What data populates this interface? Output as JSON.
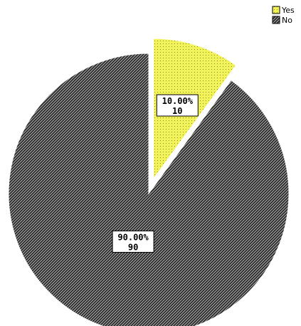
{
  "chart_data": {
    "type": "pie",
    "title": "",
    "legend_position": "top-right",
    "slices": [
      {
        "name": "Yes",
        "value": 10,
        "percent": "10.00%",
        "count_label": "10",
        "color": "#f2f25a",
        "pattern": "dots",
        "exploded": true
      },
      {
        "name": "No",
        "value": 90,
        "percent": "90.00%",
        "count_label": "90",
        "color": "#2b2b2b",
        "pattern": "diagonal-lines",
        "exploded": false
      }
    ]
  }
}
